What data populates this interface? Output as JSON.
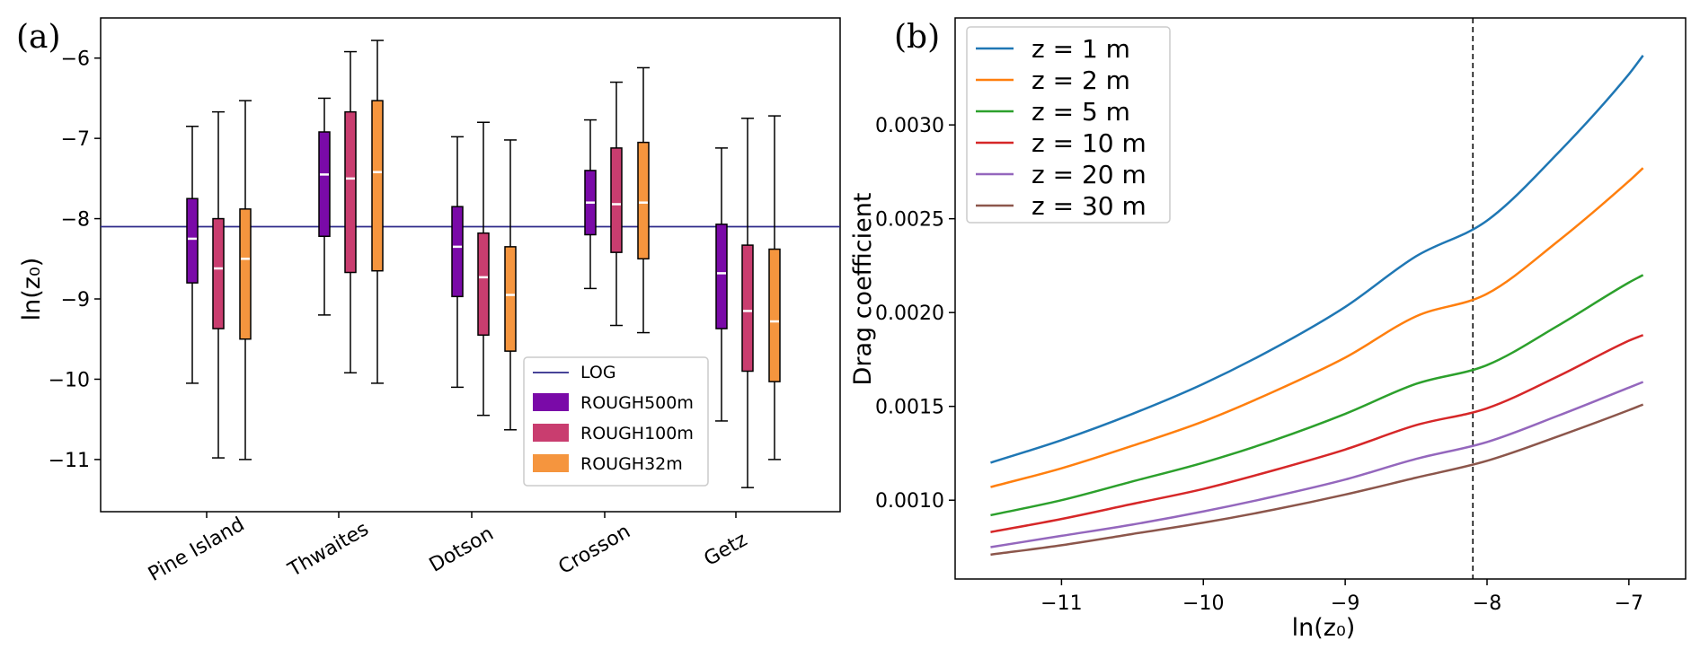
{
  "chart_data": [
    {
      "type": "box",
      "panel_label": "(a)",
      "ylabel": "ln(z₀)",
      "ylim": [
        -11.65,
        -5.5
      ],
      "yticks": [
        -6,
        -7,
        -8,
        -9,
        -10,
        -11
      ],
      "ytick_labels": [
        "−6",
        "−7",
        "−8",
        "−9",
        "−10",
        "−11"
      ],
      "categories": [
        "Pine Island",
        "Thwaites",
        "Dotson",
        "Crosson",
        "Getz"
      ],
      "reference_line": {
        "name": "LOG",
        "value": -8.1,
        "color": "#2e2a8a"
      },
      "legend_placement": "lower-right",
      "series": [
        {
          "name": "ROUGH500m",
          "color": "#7a0aa8",
          "boxes": [
            {
              "whisker_low": -10.05,
              "q1": -8.8,
              "median": -8.25,
              "q3": -7.75,
              "whisker_high": -6.85
            },
            {
              "whisker_low": -9.2,
              "q1": -8.22,
              "median": -7.45,
              "q3": -6.92,
              "whisker_high": -6.5
            },
            {
              "whisker_low": -10.1,
              "q1": -8.97,
              "median": -8.35,
              "q3": -7.85,
              "whisker_high": -6.98
            },
            {
              "whisker_low": -8.87,
              "q1": -8.2,
              "median": -7.8,
              "q3": -7.4,
              "whisker_high": -6.77
            },
            {
              "whisker_low": -10.52,
              "q1": -9.37,
              "median": -8.68,
              "q3": -8.07,
              "whisker_high": -7.12
            }
          ]
        },
        {
          "name": "ROUGH100m",
          "color": "#c93d6f",
          "boxes": [
            {
              "whisker_low": -10.98,
              "q1": -9.37,
              "median": -8.62,
              "q3": -8.0,
              "whisker_high": -6.67
            },
            {
              "whisker_low": -9.92,
              "q1": -8.67,
              "median": -7.5,
              "q3": -6.67,
              "whisker_high": -5.92
            },
            {
              "whisker_low": -10.45,
              "q1": -9.45,
              "median": -8.73,
              "q3": -8.18,
              "whisker_high": -6.8
            },
            {
              "whisker_low": -9.33,
              "q1": -8.42,
              "median": -7.82,
              "q3": -7.12,
              "whisker_high": -6.3
            },
            {
              "whisker_low": -11.35,
              "q1": -9.9,
              "median": -9.15,
              "q3": -8.33,
              "whisker_high": -6.75
            }
          ]
        },
        {
          "name": "ROUGH32m",
          "color": "#f5953e",
          "boxes": [
            {
              "whisker_low": -11.0,
              "q1": -9.5,
              "median": -8.5,
              "q3": -7.88,
              "whisker_high": -6.53
            },
            {
              "whisker_low": -10.05,
              "q1": -8.65,
              "median": -7.42,
              "q3": -6.53,
              "whisker_high": -5.78
            },
            {
              "whisker_low": -10.63,
              "q1": -9.65,
              "median": -8.95,
              "q3": -8.35,
              "whisker_high": -7.02
            },
            {
              "whisker_low": -9.42,
              "q1": -8.5,
              "median": -7.8,
              "q3": -7.05,
              "whisker_high": -6.12
            },
            {
              "whisker_low": -11.0,
              "q1": -10.03,
              "median": -9.28,
              "q3": -8.38,
              "whisker_high": -6.72
            }
          ]
        }
      ]
    },
    {
      "type": "line",
      "panel_label": "(b)",
      "xlabel": "ln(z₀)",
      "ylabel": "Drag coefficient",
      "xlim": [
        -11.75,
        -6.6
      ],
      "ylim": [
        0.00058,
        0.00357
      ],
      "xticks": [
        -11,
        -10,
        -9,
        -8,
        -7
      ],
      "xtick_labels": [
        "−11",
        "−10",
        "−9",
        "−8",
        "−7"
      ],
      "yticks": [
        0.001,
        0.0015,
        0.002,
        0.0025,
        0.003
      ],
      "ytick_labels": [
        "0.0010",
        "0.0015",
        "0.0020",
        "0.0025",
        "0.0030"
      ],
      "vline": {
        "x": -8.1,
        "style": "dashed"
      },
      "legend_placement": "upper-left",
      "x": [
        -11.5,
        -11.0,
        -10.5,
        -10.0,
        -9.5,
        -9.0,
        -8.5,
        -8.0,
        -7.5,
        -7.0,
        -6.9
      ],
      "series": [
        {
          "name": "z = 1 m",
          "color": "#1f77b4",
          "values": [
            0.0012,
            0.00132,
            0.00146,
            0.00162,
            0.00181,
            0.00203,
            0.0023,
            0.00249,
            0.00285,
            0.00327,
            0.00337
          ]
        },
        {
          "name": "z = 2 m",
          "color": "#ff7f0e",
          "values": [
            0.00107,
            0.00117,
            0.00129,
            0.00142,
            0.00158,
            0.00176,
            0.00198,
            0.0021,
            0.00238,
            0.0027,
            0.00277
          ]
        },
        {
          "name": "z = 5 m",
          "color": "#2ca02c",
          "values": [
            0.00092,
            0.001,
            0.0011,
            0.0012,
            0.00132,
            0.00146,
            0.00162,
            0.00172,
            0.00193,
            0.00216,
            0.0022
          ]
        },
        {
          "name": "z = 10 m",
          "color": "#d62728",
          "values": [
            0.00083,
            0.0009,
            0.00098,
            0.00106,
            0.00116,
            0.00127,
            0.0014,
            0.00149,
            0.00166,
            0.00185,
            0.00188
          ]
        },
        {
          "name": "z = 20 m",
          "color": "#9467bd",
          "values": [
            0.00075,
            0.00081,
            0.00087,
            0.00094,
            0.00102,
            0.00111,
            0.00122,
            0.00131,
            0.00145,
            0.0016,
            0.00163
          ]
        },
        {
          "name": "z = 30 m",
          "color": "#8c564b",
          "values": [
            0.00071,
            0.00076,
            0.00082,
            0.00088,
            0.00095,
            0.00103,
            0.00112,
            0.00121,
            0.00134,
            0.00148,
            0.00151
          ]
        }
      ]
    }
  ]
}
